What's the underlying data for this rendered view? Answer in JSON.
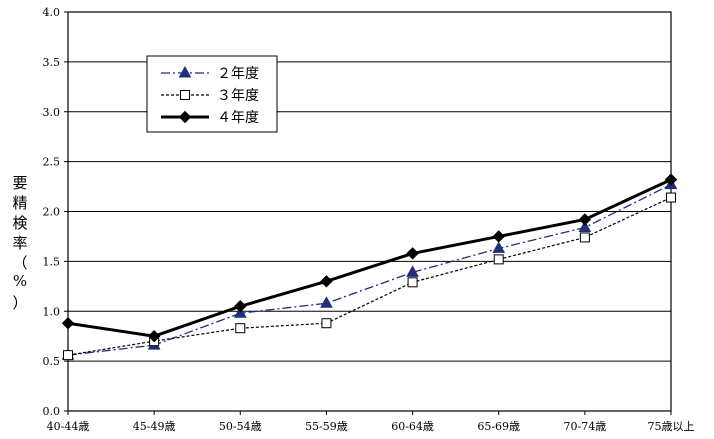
{
  "chart_data": {
    "type": "line",
    "title": "",
    "ylabel": "要精検率（%）",
    "ylabel_chars": [
      "要",
      "精",
      "検",
      "率",
      "（",
      "%",
      "）"
    ],
    "xlabel": "",
    "categories": [
      "40-44歳",
      "45-49歳",
      "50-54歳",
      "55-59歳",
      "60-64歳",
      "65-69歳",
      "70-74歳",
      "75歳以上"
    ],
    "ylim": [
      0,
      4
    ],
    "yticks": [
      0,
      0.5,
      1,
      1.5,
      2,
      2.5,
      3,
      3.5,
      4
    ],
    "ytick_labels": [
      "0.0",
      "0.5",
      "1.0",
      "1.5",
      "2.0",
      "2.5",
      "3.0",
      "3.5",
      "4.0"
    ],
    "grid": true,
    "legend_position": "top-left",
    "series": [
      {
        "name": "２年度",
        "values": [
          0.56,
          0.66,
          0.98,
          1.08,
          1.39,
          1.63,
          1.84,
          2.27
        ],
        "color": "#1f2f7a",
        "dash": "dashdot",
        "marker": "triangle"
      },
      {
        "name": "３年度",
        "values": [
          0.56,
          0.7,
          0.83,
          0.88,
          1.29,
          1.52,
          1.74,
          2.14
        ],
        "color": "#000000",
        "dash": "dotted",
        "marker": "open-square"
      },
      {
        "name": "４年度",
        "values": [
          0.88,
          0.75,
          1.05,
          1.3,
          1.58,
          1.75,
          1.92,
          2.32
        ],
        "color": "#000000",
        "dash": "solid-thick",
        "marker": "diamond"
      }
    ]
  }
}
